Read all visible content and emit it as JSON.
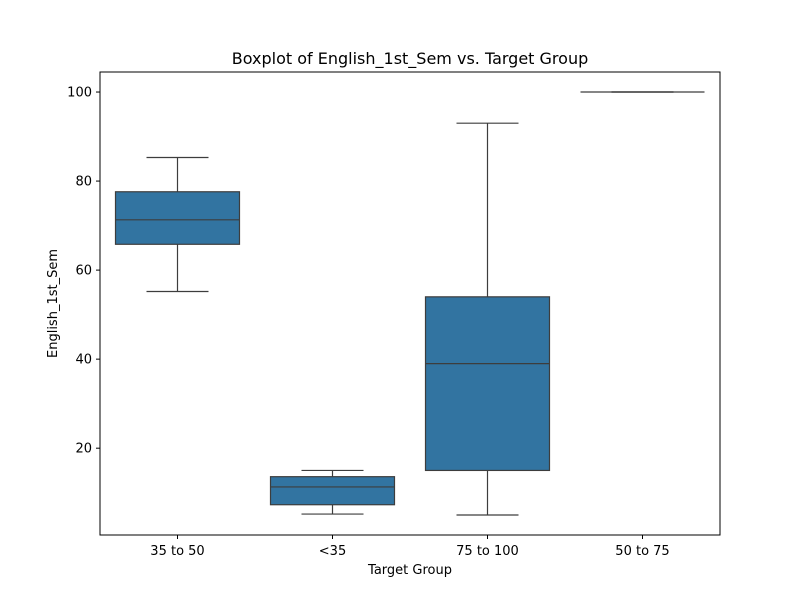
{
  "chart_data": {
    "type": "box",
    "title": "Boxplot of English_1st_Sem vs. Target Group",
    "xlabel": "Target Group",
    "ylabel": "English_1st_Sem",
    "ylim": [
      0.5,
      104.5
    ],
    "yticks": [
      20,
      40,
      60,
      80,
      100
    ],
    "box_color": "#3274a1",
    "line_color": "#3d3d3d",
    "grid": false,
    "categories": [
      "35 to 50",
      "<35",
      "75 to 100",
      "50 to 75"
    ],
    "boxes": [
      {
        "category": "35 to 50",
        "whisker_low": 55.2,
        "q1": 65.8,
        "median": 71.3,
        "q3": 77.6,
        "whisker_high": 85.3
      },
      {
        "category": "<35",
        "whisker_low": 5.2,
        "q1": 7.3,
        "median": 11.3,
        "q3": 13.6,
        "whisker_high": 15.0
      },
      {
        "category": "75 to 100",
        "whisker_low": 5.0,
        "q1": 15.0,
        "median": 39.0,
        "q3": 54.0,
        "whisker_high": 93.0
      },
      {
        "category": "50 to 75",
        "whisker_low": 100.0,
        "q1": 100.0,
        "median": 100.0,
        "q3": 100.0,
        "whisker_high": 100.0
      }
    ]
  }
}
